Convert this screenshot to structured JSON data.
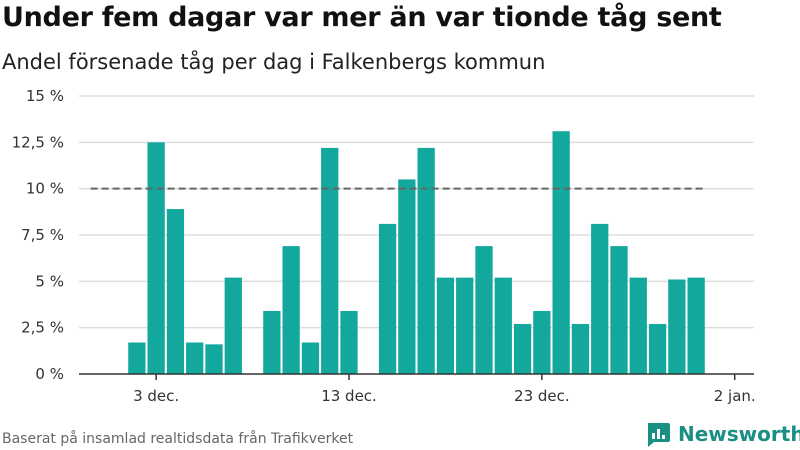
{
  "header": {
    "title": "Under fem dagar var mer än var tionde tåg sent",
    "subtitle": "Andel försenade tåg per dag i Falkenbergs kommun"
  },
  "footer": {
    "source": "Baserat på insamlad realtidsdata från Trafikverket",
    "brand": "Newsworthy",
    "brand_icon": "newsworthy-logo-icon"
  },
  "colors": {
    "bar": "#13a89e",
    "threshold_line": "#666666",
    "grid": "#dddddd",
    "brand": "#1a8f84"
  },
  "chart_data": {
    "type": "bar",
    "title": "Under fem dagar var mer än var tionde tåg sent",
    "subtitle": "Andel försenade tåg per dag i Falkenbergs kommun",
    "xlabel": "",
    "ylabel": "",
    "x_range": [
      "2024-11-29",
      "2025-01-03"
    ],
    "ylim": [
      0,
      15
    ],
    "y_ticks": [
      0,
      2.5,
      5,
      7.5,
      10,
      12.5,
      15
    ],
    "y_tick_labels": [
      "0 %",
      "2,5 %",
      "5 %",
      "7,5 %",
      "10 %",
      "12,5 %",
      "15 %"
    ],
    "x_ticks": [
      "2024-12-03",
      "2024-12-13",
      "2024-12-23",
      "2025-01-02"
    ],
    "x_tick_labels": [
      "3 dec.",
      "13 dec.",
      "23 dec.",
      "2 jan."
    ],
    "grid": "horizontal",
    "reference_line": {
      "value": 10,
      "style": "dashed",
      "from": "2024-11-30",
      "to": "2024-12-31"
    },
    "series": [
      {
        "points": [
          {
            "date": "2024-12-02",
            "value": 1.7
          },
          {
            "date": "2024-12-03",
            "value": 12.5
          },
          {
            "date": "2024-12-04",
            "value": 8.9
          },
          {
            "date": "2024-12-05",
            "value": 1.7
          },
          {
            "date": "2024-12-06",
            "value": 1.6
          },
          {
            "date": "2024-12-07",
            "value": 5.2
          },
          {
            "date": "2024-12-09",
            "value": 3.4
          },
          {
            "date": "2024-12-10",
            "value": 6.9
          },
          {
            "date": "2024-12-11",
            "value": 1.7
          },
          {
            "date": "2024-12-12",
            "value": 12.2
          },
          {
            "date": "2024-12-13",
            "value": 3.4
          },
          {
            "date": "2024-12-15",
            "value": 8.1
          },
          {
            "date": "2024-12-16",
            "value": 10.5
          },
          {
            "date": "2024-12-17",
            "value": 12.2
          },
          {
            "date": "2024-12-18",
            "value": 5.2
          },
          {
            "date": "2024-12-19",
            "value": 5.2
          },
          {
            "date": "2024-12-20",
            "value": 6.9
          },
          {
            "date": "2024-12-21",
            "value": 5.2
          },
          {
            "date": "2024-12-22",
            "value": 2.7
          },
          {
            "date": "2024-12-23",
            "value": 3.4
          },
          {
            "date": "2024-12-24",
            "value": 13.1
          },
          {
            "date": "2024-12-25",
            "value": 2.7
          },
          {
            "date": "2024-12-26",
            "value": 8.1
          },
          {
            "date": "2024-12-27",
            "value": 6.9
          },
          {
            "date": "2024-12-28",
            "value": 5.2
          },
          {
            "date": "2024-12-29",
            "value": 2.7
          },
          {
            "date": "2024-12-30",
            "value": 5.1
          },
          {
            "date": "2024-12-31",
            "value": 5.2
          }
        ]
      }
    ]
  }
}
